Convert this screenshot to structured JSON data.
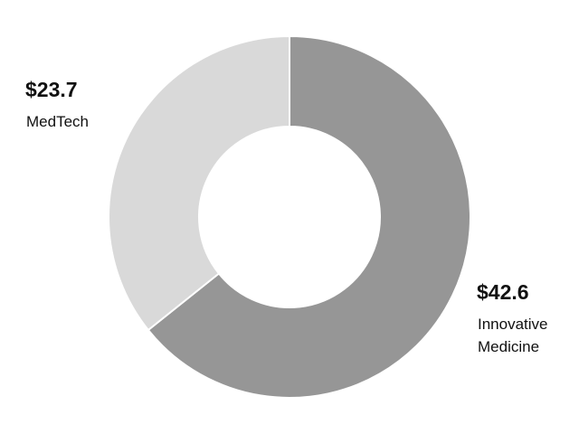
{
  "chart_data": {
    "type": "pie",
    "categories": [
      "Innovative Medicine",
      "MedTech"
    ],
    "values": [
      42.6,
      23.7
    ],
    "value_labels": [
      "$42.6",
      "$23.7"
    ],
    "colors": [
      "#969696",
      "#d9d9d9"
    ]
  }
}
